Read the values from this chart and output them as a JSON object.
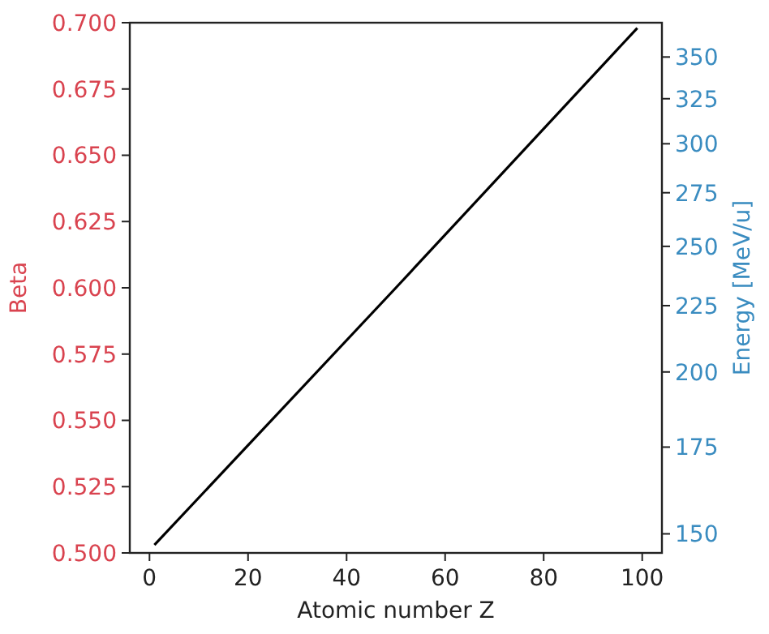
{
  "chart_data": {
    "type": "line",
    "xlabel": "Atomic number Z",
    "ylabel": "Beta",
    "y2label": "Energy [MeV/u]",
    "xlim": [
      -4,
      104
    ],
    "xticks": [
      0,
      20,
      40,
      60,
      80,
      100
    ],
    "ylim": [
      0.5,
      0.7
    ],
    "yticks": [
      {
        "value": 0.5,
        "label": "0.500"
      },
      {
        "value": 0.525,
        "label": "0.525"
      },
      {
        "value": 0.55,
        "label": "0.550"
      },
      {
        "value": 0.575,
        "label": "0.575"
      },
      {
        "value": 0.6,
        "label": "0.600"
      },
      {
        "value": 0.625,
        "label": "0.625"
      },
      {
        "value": 0.65,
        "label": "0.650"
      },
      {
        "value": 0.675,
        "label": "0.675"
      },
      {
        "value": 0.7,
        "label": "0.700"
      }
    ],
    "y2lim": [
      145,
      372
    ],
    "log": "y2",
    "y2ticks": [
      150,
      175,
      200,
      225,
      250,
      275,
      300,
      325,
      350
    ],
    "grid": false,
    "series": [
      {
        "color": "#000000",
        "x": [
          1,
          50,
          99
        ],
        "values": [
          0.503,
          0.6,
          0.698
        ]
      }
    ]
  }
}
